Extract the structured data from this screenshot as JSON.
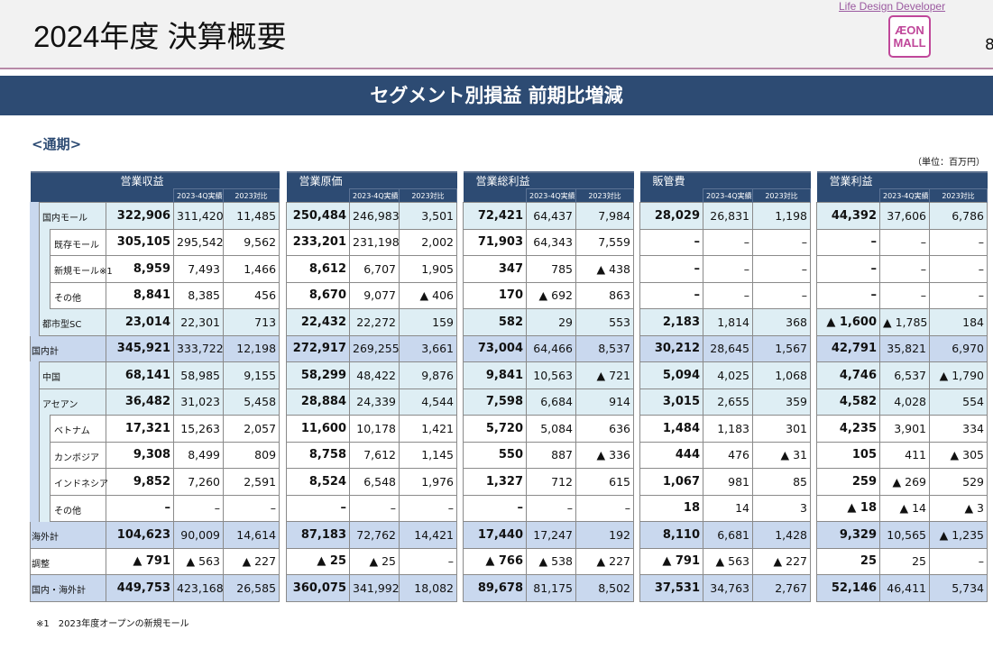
{
  "header": {
    "title": "2024年度 決算概要",
    "tagline": "Life Design Developer",
    "logo": "ÆON MALL",
    "page": "8"
  },
  "banner": "セグメント別損益 前期比増減",
  "period": "<通期>",
  "unit": "（単位：百万円）",
  "segments": [
    "営業収益",
    "営業原価",
    "営業総利益",
    "販管費",
    "営業利益"
  ],
  "sub_labels": [
    "2023-4Q実績",
    "2023対比"
  ],
  "rows": [
    {
      "label": "国内モール",
      "level": 1,
      "style": "l1",
      "v": [
        "322,906",
        "311,420",
        "11,485",
        "250,484",
        "246,983",
        "3,501",
        "72,421",
        "64,437",
        "7,984",
        "28,029",
        "26,831",
        "1,198",
        "44,392",
        "37,606",
        "6,786"
      ]
    },
    {
      "label": "既存モール",
      "level": 2,
      "style": "plain",
      "v": [
        "305,105",
        "295,542",
        "9,562",
        "233,201",
        "231,198",
        "2,002",
        "71,903",
        "64,343",
        "7,559",
        "–",
        "–",
        "–",
        "–",
        "–",
        "–"
      ]
    },
    {
      "label": "新規モール※1",
      "level": 2,
      "style": "plain",
      "v": [
        "8,959",
        "7,493",
        "1,466",
        "8,612",
        "6,707",
        "1,905",
        "347",
        "785",
        "▲ 438",
        "–",
        "–",
        "–",
        "–",
        "–",
        "–"
      ]
    },
    {
      "label": "その他",
      "level": 2,
      "style": "plain",
      "v": [
        "8,841",
        "8,385",
        "456",
        "8,670",
        "9,077",
        "▲ 406",
        "170",
        "▲ 692",
        "863",
        "–",
        "–",
        "–",
        "–",
        "–",
        "–"
      ]
    },
    {
      "label": "都市型SC",
      "level": 1,
      "style": "l1",
      "v": [
        "23,014",
        "22,301",
        "713",
        "22,432",
        "22,272",
        "159",
        "582",
        "29",
        "553",
        "2,183",
        "1,814",
        "368",
        "▲ 1,600",
        "▲ 1,785",
        "184"
      ]
    },
    {
      "label": "国内計",
      "level": 0,
      "style": "tot",
      "v": [
        "345,921",
        "333,722",
        "12,198",
        "272,917",
        "269,255",
        "3,661",
        "73,004",
        "64,466",
        "8,537",
        "30,212",
        "28,645",
        "1,567",
        "42,791",
        "35,821",
        "6,970"
      ]
    },
    {
      "label": "中国",
      "level": 1,
      "style": "l1",
      "v": [
        "68,141",
        "58,985",
        "9,155",
        "58,299",
        "48,422",
        "9,876",
        "9,841",
        "10,563",
        "▲ 721",
        "5,094",
        "4,025",
        "1,068",
        "4,746",
        "6,537",
        "▲ 1,790"
      ]
    },
    {
      "label": "アセアン",
      "level": 1,
      "style": "l1",
      "v": [
        "36,482",
        "31,023",
        "5,458",
        "28,884",
        "24,339",
        "4,544",
        "7,598",
        "6,684",
        "914",
        "3,015",
        "2,655",
        "359",
        "4,582",
        "4,028",
        "554"
      ]
    },
    {
      "label": "ベトナム",
      "level": 2,
      "style": "plain",
      "v": [
        "17,321",
        "15,263",
        "2,057",
        "11,600",
        "10,178",
        "1,421",
        "5,720",
        "5,084",
        "636",
        "1,484",
        "1,183",
        "301",
        "4,235",
        "3,901",
        "334"
      ]
    },
    {
      "label": "カンボジア",
      "level": 2,
      "style": "plain",
      "v": [
        "9,308",
        "8,499",
        "809",
        "8,758",
        "7,612",
        "1,145",
        "550",
        "887",
        "▲ 336",
        "444",
        "476",
        "▲ 31",
        "105",
        "411",
        "▲ 305"
      ]
    },
    {
      "label": "インドネシア",
      "level": 2,
      "style": "plain",
      "v": [
        "9,852",
        "7,260",
        "2,591",
        "8,524",
        "6,548",
        "1,976",
        "1,327",
        "712",
        "615",
        "1,067",
        "981",
        "85",
        "259",
        "▲ 269",
        "529"
      ]
    },
    {
      "label": "その他",
      "level": 2,
      "style": "plain",
      "v": [
        "–",
        "–",
        "–",
        "–",
        "–",
        "–",
        "–",
        "–",
        "–",
        "18",
        "14",
        "3",
        "▲ 18",
        "▲ 14",
        "▲ 3"
      ]
    },
    {
      "label": "海外計",
      "level": 0,
      "style": "tot",
      "v": [
        "104,623",
        "90,009",
        "14,614",
        "87,183",
        "72,762",
        "14,421",
        "17,440",
        "17,247",
        "192",
        "8,110",
        "6,681",
        "1,428",
        "9,329",
        "10,565",
        "▲ 1,235"
      ]
    },
    {
      "label": "調整",
      "level": 0,
      "style": "plain",
      "v": [
        "▲ 791",
        "▲ 563",
        "▲ 227",
        "▲ 25",
        "▲ 25",
        "–",
        "▲ 766",
        "▲ 538",
        "▲ 227",
        "▲ 791",
        "▲ 563",
        "▲ 227",
        "25",
        "25",
        "–"
      ]
    },
    {
      "label": "国内・海外計",
      "level": 0,
      "style": "tot",
      "v": [
        "449,753",
        "423,168",
        "26,585",
        "360,075",
        "341,992",
        "18,082",
        "89,678",
        "81,175",
        "8,502",
        "37,531",
        "34,763",
        "2,767",
        "52,146",
        "46,411",
        "5,734"
      ]
    }
  ],
  "footnote": "※1　2023年度オープンの新規モール"
}
